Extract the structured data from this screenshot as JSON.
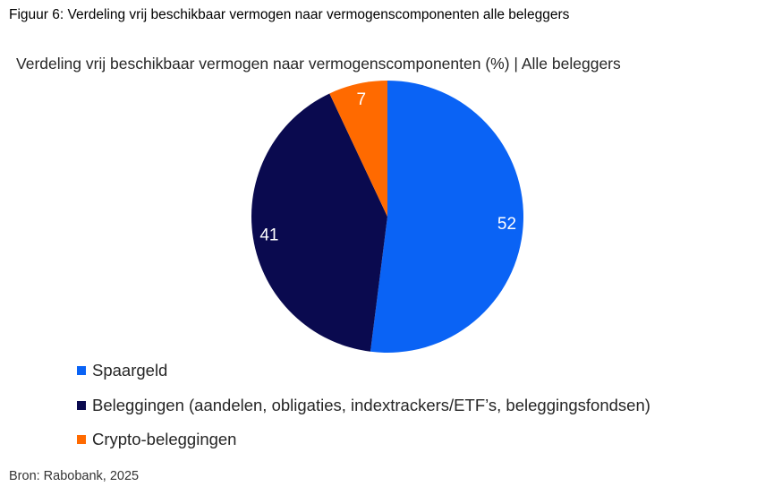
{
  "figure_caption": "Figuur 6: Verdeling vrij beschikbaar vermogen naar vermogenscomponenten alle beleggers",
  "source": "Bron: Rabobank, 2025",
  "chart_data": {
    "type": "pie",
    "title": "Verdeling vrij beschikbaar vermogen naar vermogenscomponenten (%) | Alle beleggers",
    "categories": [
      "Spaargeld",
      "Beleggingen (aandelen, obligaties, indextrackers/ETF’s, beleggingsfondsen)",
      "Crypto-beleggingen"
    ],
    "values": [
      52,
      41,
      7
    ],
    "data_labels": [
      "52",
      "41",
      "7"
    ],
    "colors": [
      "#0a63f5",
      "#0a0a4f",
      "#ff6a00"
    ],
    "label_colors": [
      "#ffffff",
      "#ffffff",
      "#ffffff"
    ],
    "legend_position": "bottom-left",
    "start_angle": "top",
    "direction": "clockwise"
  }
}
